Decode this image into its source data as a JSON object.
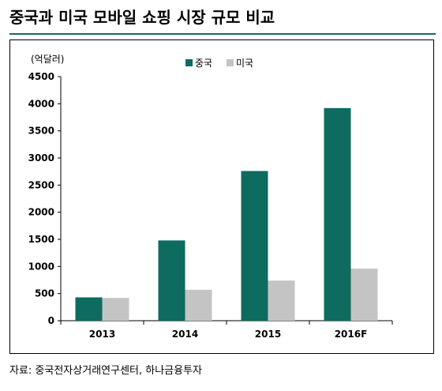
{
  "header": {
    "title": "중국과 미국 모바일 쇼핑 시장 규모 비교"
  },
  "footer": {
    "source": "자료: 중국전자상거래연구센터, 하나금융투자"
  },
  "chart_data": {
    "type": "bar",
    "title": "중국과 미국 모바일 쇼핑 시장 규모 비교",
    "ylabel": "(억달러)",
    "xlabel": "",
    "categories": [
      "2013",
      "2014",
      "2015",
      "2016F"
    ],
    "series": [
      {
        "name": "중국",
        "color": "#0e6b5f",
        "values": [
          430,
          1480,
          2760,
          3920
        ]
      },
      {
        "name": "미국",
        "color": "#c4c4c4",
        "values": [
          420,
          570,
          740,
          960
        ]
      }
    ],
    "ylim": [
      0,
      4500
    ],
    "yticks": [
      0,
      500,
      1000,
      1500,
      2000,
      2500,
      3000,
      3500,
      4000,
      4500
    ],
    "grid": false,
    "legend": "top-center"
  }
}
